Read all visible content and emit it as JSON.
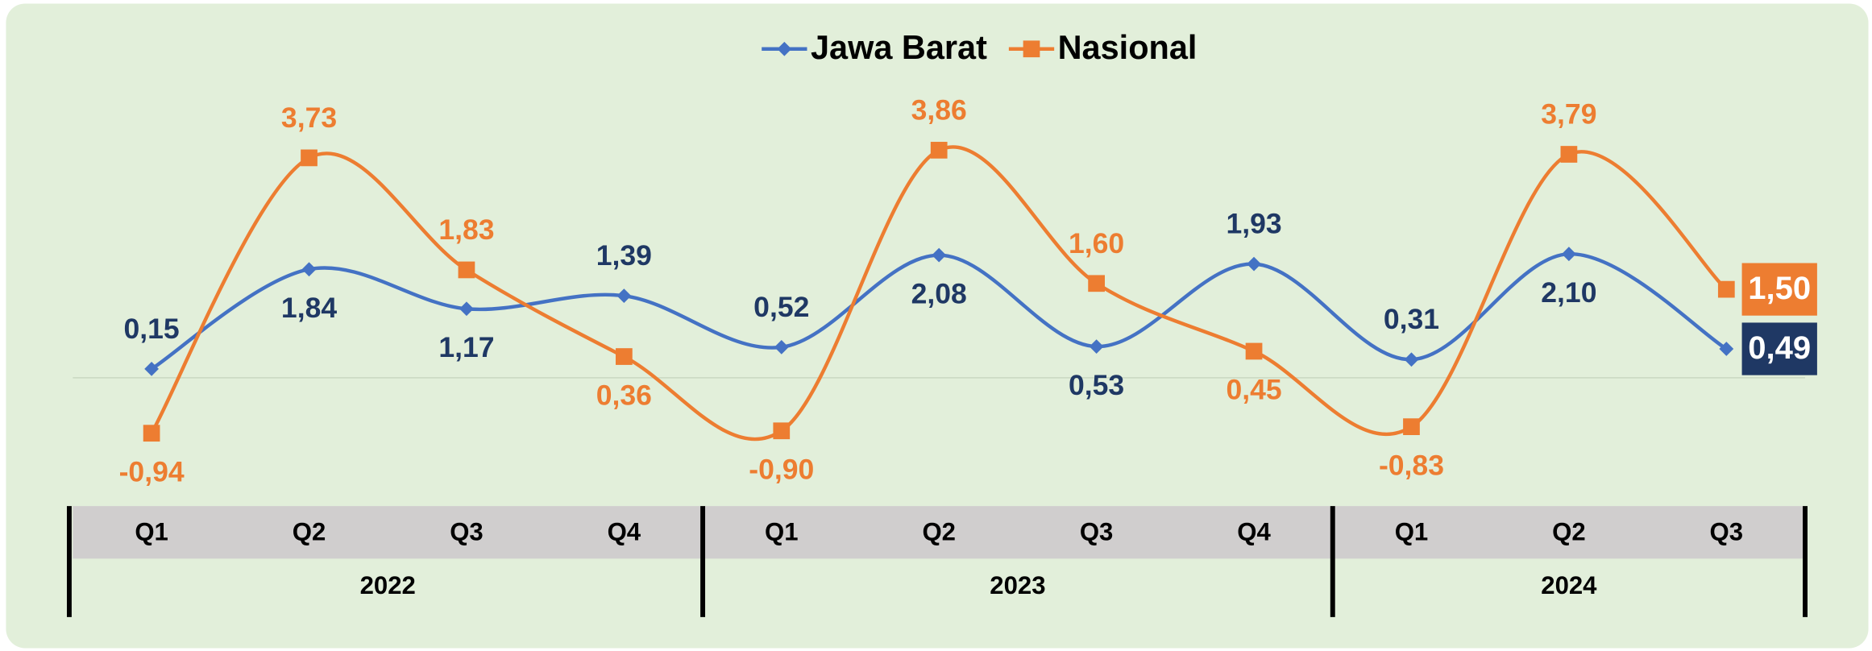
{
  "chart_data": {
    "type": "line",
    "category_groups": [
      {
        "name": "2022",
        "categories": [
          "Q1",
          "Q2",
          "Q3",
          "Q4"
        ]
      },
      {
        "name": "2023",
        "categories": [
          "Q1",
          "Q2",
          "Q3",
          "Q4"
        ]
      },
      {
        "name": "2024",
        "categories": [
          "Q1",
          "Q2",
          "Q3"
        ]
      }
    ],
    "series": [
      {
        "name": "Jawa Barat",
        "color": "#4472c4",
        "label_color": "#1f3864",
        "marker": "diamond",
        "values": [
          0.15,
          1.84,
          1.17,
          1.39,
          0.52,
          2.08,
          0.53,
          1.93,
          0.31,
          2.1,
          0.49
        ],
        "value_labels": [
          "0,15",
          "1,84",
          "1,17",
          "1,39",
          "0,52",
          "2,08",
          "0,53",
          "1,93",
          "0,31",
          "2,10",
          "0,49"
        ]
      },
      {
        "name": "Nasional",
        "color": "#ed7d31",
        "label_color": "#ed7d31",
        "marker": "square",
        "values": [
          -0.94,
          3.73,
          1.83,
          0.36,
          -0.9,
          3.86,
          1.6,
          0.45,
          -0.83,
          3.79,
          1.5
        ],
        "value_labels": [
          "-0,94",
          "3,73",
          "1,83",
          "0,36",
          "-0,90",
          "3,86",
          "1,60",
          "0,45",
          "-0,83",
          "3,79",
          "1,50"
        ]
      }
    ],
    "ylim": [
      -2,
      5
    ],
    "legend": "top"
  }
}
